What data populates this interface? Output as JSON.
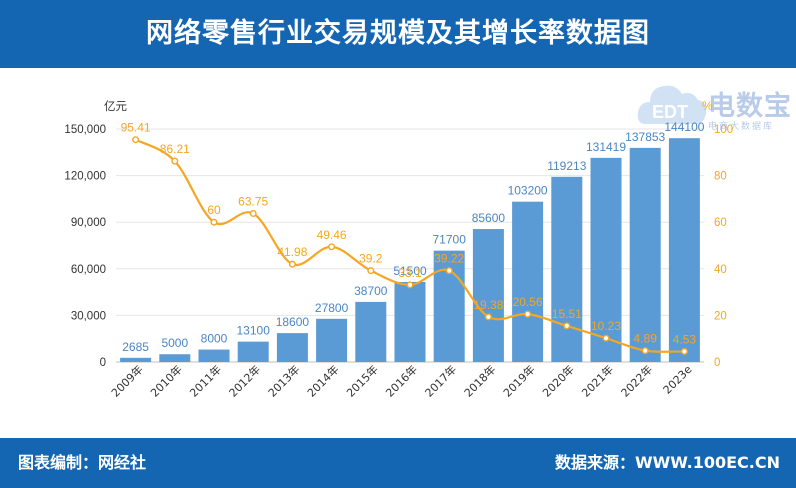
{
  "header": {
    "title": "网络零售行业交易规模及其增长率数据图"
  },
  "footer": {
    "producer": "图表编制：网经社",
    "source": "数据来源：WWW.100EC.CN"
  },
  "logo": {
    "main": "电数宝",
    "sub": "电商大数据库",
    "mark": "EDT"
  },
  "colors": {
    "header_bg": "#1466b2",
    "bar": "#5b9bd5",
    "line": "#f5a623",
    "left_axis_text": "#333333",
    "right_axis_text": "#f5a623"
  },
  "chart_data": {
    "type": "bar",
    "categories": [
      "2009年",
      "2010年",
      "2011年",
      "2012年",
      "2013年",
      "2014年",
      "2015年",
      "2016年",
      "2017年",
      "2018年",
      "2019年",
      "2020年",
      "2021年",
      "2022年",
      "2023e"
    ],
    "series": [
      {
        "values": [
          2685,
          5000,
          8000,
          13100,
          18600,
          27800,
          38700,
          51500,
          71700,
          85600,
          103200,
          119213,
          131419,
          137853,
          144100
        ],
        "axis": "left",
        "type": "bar"
      },
      {
        "values": [
          95.41,
          86.21,
          60,
          63.75,
          41.98,
          49.46,
          39.2,
          33.1,
          39.22,
          19.38,
          20.56,
          15.51,
          10.23,
          4.89,
          4.53
        ],
        "axis": "right",
        "type": "line"
      }
    ],
    "bar_labels": [
      "2685",
      "5000",
      "8000",
      "13100",
      "18600",
      "27800",
      "38700",
      "51500",
      "71700",
      "85600",
      "103200",
      "119213",
      "131419",
      "137853",
      "144100"
    ],
    "line_labels": [
      "95.41",
      "86.21",
      "60",
      "63.75",
      "41.98",
      "49.46",
      "39.2",
      "33.1",
      "39.22",
      "19.38",
      "20.56",
      "15.51",
      "10.23",
      "4.89",
      "4.53"
    ],
    "y_left": {
      "unit": "亿元",
      "ticks": [
        "0",
        "30,000",
        "60,000",
        "90,000",
        "120,000",
        "150,000"
      ],
      "range": [
        0,
        150000
      ]
    },
    "y_right": {
      "unit": "%",
      "ticks": [
        "0",
        "20",
        "40",
        "60",
        "80",
        "100"
      ],
      "range": [
        0,
        100
      ]
    },
    "grid": true
  }
}
